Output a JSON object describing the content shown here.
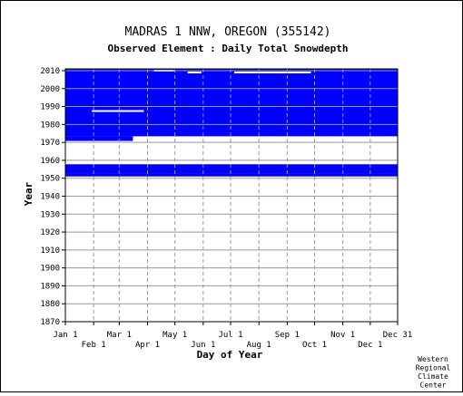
{
  "title": "MADRAS 1 NNW, OREGON   (355142)",
  "subtitle": "Observed Element : Daily Total Snowdepth",
  "credit": [
    "Western",
    "Regional",
    "Climate",
    "Center"
  ],
  "colors": {
    "data": "#0000ff",
    "grid": "#999999",
    "background": "#ffffff"
  },
  "chart_data": {
    "type": "heatmap",
    "title": "Observed Element : Daily Total Snowdepth",
    "xlabel": "Day of Year",
    "ylabel": "Year",
    "ylim": [
      1870,
      2011
    ],
    "xlim": [
      "Jan 1",
      "Dec 31"
    ],
    "y_ticks": [
      1870,
      1880,
      1890,
      1900,
      1910,
      1920,
      1930,
      1940,
      1950,
      1960,
      1970,
      1980,
      1990,
      2000,
      2010
    ],
    "x_ticks_upper": [
      {
        "label": "Jan 1",
        "doy": 1
      },
      {
        "label": "Mar 1",
        "doy": 60
      },
      {
        "label": "May 1",
        "doy": 121
      },
      {
        "label": "Jul 1",
        "doy": 182
      },
      {
        "label": "Sep 1",
        "doy": 244
      },
      {
        "label": "Nov 1",
        "doy": 305
      },
      {
        "label": "Dec 31",
        "doy": 365
      }
    ],
    "x_ticks_lower": [
      {
        "label": "Feb 1",
        "doy": 32
      },
      {
        "label": "Apr 1",
        "doy": 91
      },
      {
        "label": "Jun 1",
        "doy": 152
      },
      {
        "label": "Aug 1",
        "doy": 213
      },
      {
        "label": "Oct 1",
        "doy": 274
      },
      {
        "label": "Dec 1",
        "doy": 335
      }
    ],
    "grid": true,
    "data_blocks": [
      {
        "year_start": 1973.4,
        "year_end": 2011,
        "doy_start": 1,
        "doy_end": 365
      },
      {
        "year_start": 1970.8,
        "year_end": 1973.4,
        "doy_start": 1,
        "doy_end": 75
      },
      {
        "year_start": 1952.6,
        "year_end": 1957.8,
        "doy_start": 1,
        "doy_end": 365
      },
      {
        "year_start": 1951.0,
        "year_end": 1952.6,
        "doy_start": 1,
        "doy_end": 25
      },
      {
        "year_start": 1951.0,
        "year_end": 1952.6,
        "doy_start": 25,
        "doy_end": 365
      }
    ],
    "missing_segments": [
      {
        "year": 2009,
        "doy_start": 186,
        "doy_end": 270
      },
      {
        "year": 1987.5,
        "doy_start": 30,
        "doy_end": 87
      },
      {
        "year": 2010,
        "doy_start": 98,
        "doy_end": 120
      },
      {
        "year": 2009,
        "doy_start": 135,
        "doy_end": 150
      }
    ]
  }
}
